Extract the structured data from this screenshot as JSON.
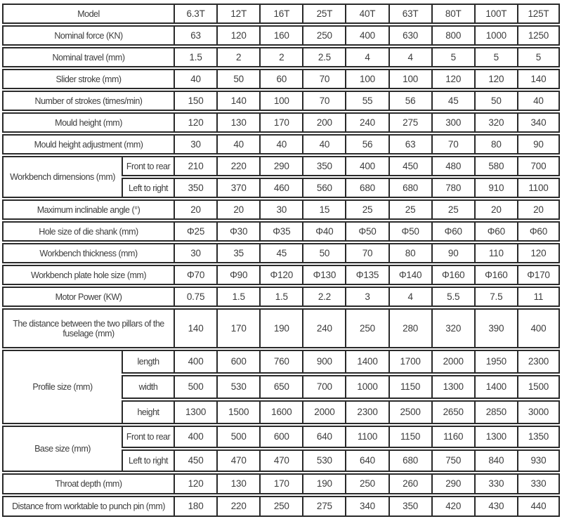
{
  "theme": {
    "background_color": "#ffffff",
    "border_color": "#2a2a2a",
    "text_color": "#3d3d3d"
  },
  "table": {
    "rows": [
      {
        "label": "Model",
        "header": true,
        "values": [
          "6.3T",
          "12T",
          "16T",
          "25T",
          "40T",
          "63T",
          "80T",
          "100T",
          "125T"
        ]
      },
      {
        "label": "Nominal force (KN)",
        "values": [
          "63",
          "120",
          "160",
          "250",
          "400",
          "630",
          "800",
          "1000",
          "1250"
        ]
      },
      {
        "label": "Nominal travel (mm)",
        "values": [
          "1.5",
          "2",
          "2",
          "2.5",
          "4",
          "4",
          "5",
          "5",
          "5"
        ]
      },
      {
        "label": "Slider stroke (mm)",
        "values": [
          "40",
          "50",
          "60",
          "70",
          "100",
          "100",
          "120",
          "120",
          "140"
        ]
      },
      {
        "label": "Number of strokes (times/min)",
        "values": [
          "150",
          "140",
          "100",
          "70",
          "55",
          "56",
          "45",
          "50",
          "40"
        ]
      },
      {
        "label": "Mould height (mm)",
        "values": [
          "120",
          "130",
          "170",
          "200",
          "240",
          "275",
          "300",
          "320",
          "340"
        ]
      },
      {
        "label": "Mould height adjustment (mm)",
        "values": [
          "30",
          "40",
          "40",
          "40",
          "56",
          "63",
          "70",
          "80",
          "90"
        ]
      },
      {
        "label": "Workbench dimensions (mm)",
        "rowspan": 2,
        "sublabel": "Front to rear",
        "values": [
          "210",
          "220",
          "290",
          "350",
          "400",
          "450",
          "480",
          "580",
          "700"
        ]
      },
      {
        "sublabel": "Left to right",
        "values": [
          "350",
          "370",
          "460",
          "560",
          "680",
          "680",
          "780",
          "910",
          "1100"
        ]
      },
      {
        "label": "Maximum inclinable angle (°)",
        "values": [
          "20",
          "20",
          "30",
          "15",
          "25",
          "25",
          "25",
          "20",
          "20"
        ]
      },
      {
        "label": "Hole size of die shank (mm)",
        "values": [
          "Φ25",
          "Φ30",
          "Φ35",
          "Φ40",
          "Φ50",
          "Φ50",
          "Φ60",
          "Φ60",
          "Φ60"
        ]
      },
      {
        "label": "Workbench thickness (mm)",
        "values": [
          "30",
          "35",
          "45",
          "50",
          "70",
          "80",
          "90",
          "110",
          "120"
        ]
      },
      {
        "label": "Workbench plate hole size (mm)",
        "values": [
          "Φ70",
          "Φ90",
          "Φ120",
          "Φ130",
          "Φ135",
          "Φ140",
          "Φ160",
          "Φ160",
          "Φ170"
        ]
      },
      {
        "label": "Motor Power (KW)",
        "values": [
          "0.75",
          "1.5",
          "1.5",
          "2.2",
          "3",
          "4",
          "5.5",
          "7.5",
          "11"
        ]
      },
      {
        "label": "The distance between the two pillars of the fuselage (mm)",
        "values": [
          "140",
          "170",
          "190",
          "240",
          "250",
          "280",
          "320",
          "390",
          "400"
        ]
      },
      {
        "label": "Profile size (mm)",
        "rowspan": 3,
        "sublabel": "length",
        "values": [
          "400",
          "600",
          "760",
          "900",
          "1400",
          "1700",
          "2000",
          "1950",
          "2300"
        ]
      },
      {
        "sublabel": "width",
        "values": [
          "500",
          "530",
          "650",
          "700",
          "1000",
          "1150",
          "1300",
          "1400",
          "1500"
        ]
      },
      {
        "sublabel": "height",
        "values": [
          "1300",
          "1500",
          "1600",
          "2000",
          "2300",
          "2500",
          "2650",
          "2850",
          "3000"
        ]
      },
      {
        "label": "Base size (mm)",
        "rowspan": 2,
        "sublabel": "Front to rear",
        "values": [
          "400",
          "500",
          "600",
          "640",
          "1100",
          "1150",
          "1160",
          "1300",
          "1350"
        ]
      },
      {
        "sublabel": "Left to right",
        "values": [
          "450",
          "470",
          "470",
          "530",
          "640",
          "680",
          "750",
          "840",
          "930"
        ]
      },
      {
        "label": "Throat depth (mm)",
        "values": [
          "120",
          "130",
          "170",
          "190",
          "250",
          "260",
          "290",
          "330",
          "330"
        ]
      },
      {
        "label": "Distance from worktable to punch pin (mm)",
        "values": [
          "180",
          "220",
          "250",
          "275",
          "340",
          "350",
          "420",
          "430",
          "440"
        ]
      }
    ]
  }
}
